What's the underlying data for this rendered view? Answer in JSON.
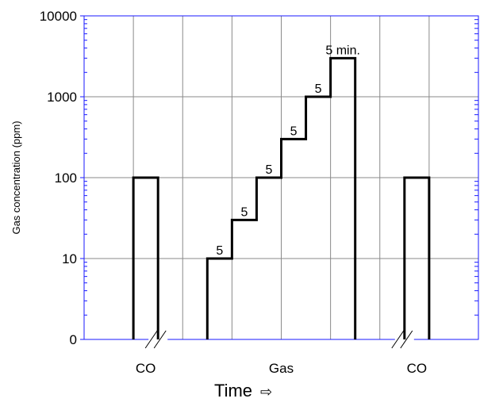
{
  "chart_data": {
    "type": "line",
    "title": "",
    "xlabel": "Time",
    "xlabel_arrow": "⇨",
    "ylabel": "Gas concentration (ppm)",
    "y_scale": "log (lowest tick labelled 0)",
    "y_ticks": [
      "0",
      "10",
      "100",
      "1000",
      "10000"
    ],
    "grid": true,
    "categories": [
      "CO",
      "Gas",
      "CO"
    ],
    "axis_breaks": 2,
    "series": [
      {
        "values": [
          {
            "segment": "CO",
            "x_start": 0,
            "x_end": 1,
            "y": 100
          },
          {
            "segment": "Gas",
            "x_start": 0,
            "x_end": 1,
            "y": 10
          },
          {
            "segment": "Gas",
            "x_start": 1,
            "x_end": 2,
            "y": 30
          },
          {
            "segment": "Gas",
            "x_start": 2,
            "x_end": 3,
            "y": 100
          },
          {
            "segment": "Gas",
            "x_start": 3,
            "x_end": 4,
            "y": 300
          },
          {
            "segment": "Gas",
            "x_start": 4,
            "x_end": 5,
            "y": 1000
          },
          {
            "segment": "Gas",
            "x_start": 5,
            "x_end": 6,
            "y": 3000
          },
          {
            "segment": "CO",
            "x_start": 0,
            "x_end": 1,
            "y": 100
          }
        ]
      }
    ],
    "annotations": [
      "5",
      "5",
      "5",
      "5",
      "5",
      "5 min."
    ]
  }
}
